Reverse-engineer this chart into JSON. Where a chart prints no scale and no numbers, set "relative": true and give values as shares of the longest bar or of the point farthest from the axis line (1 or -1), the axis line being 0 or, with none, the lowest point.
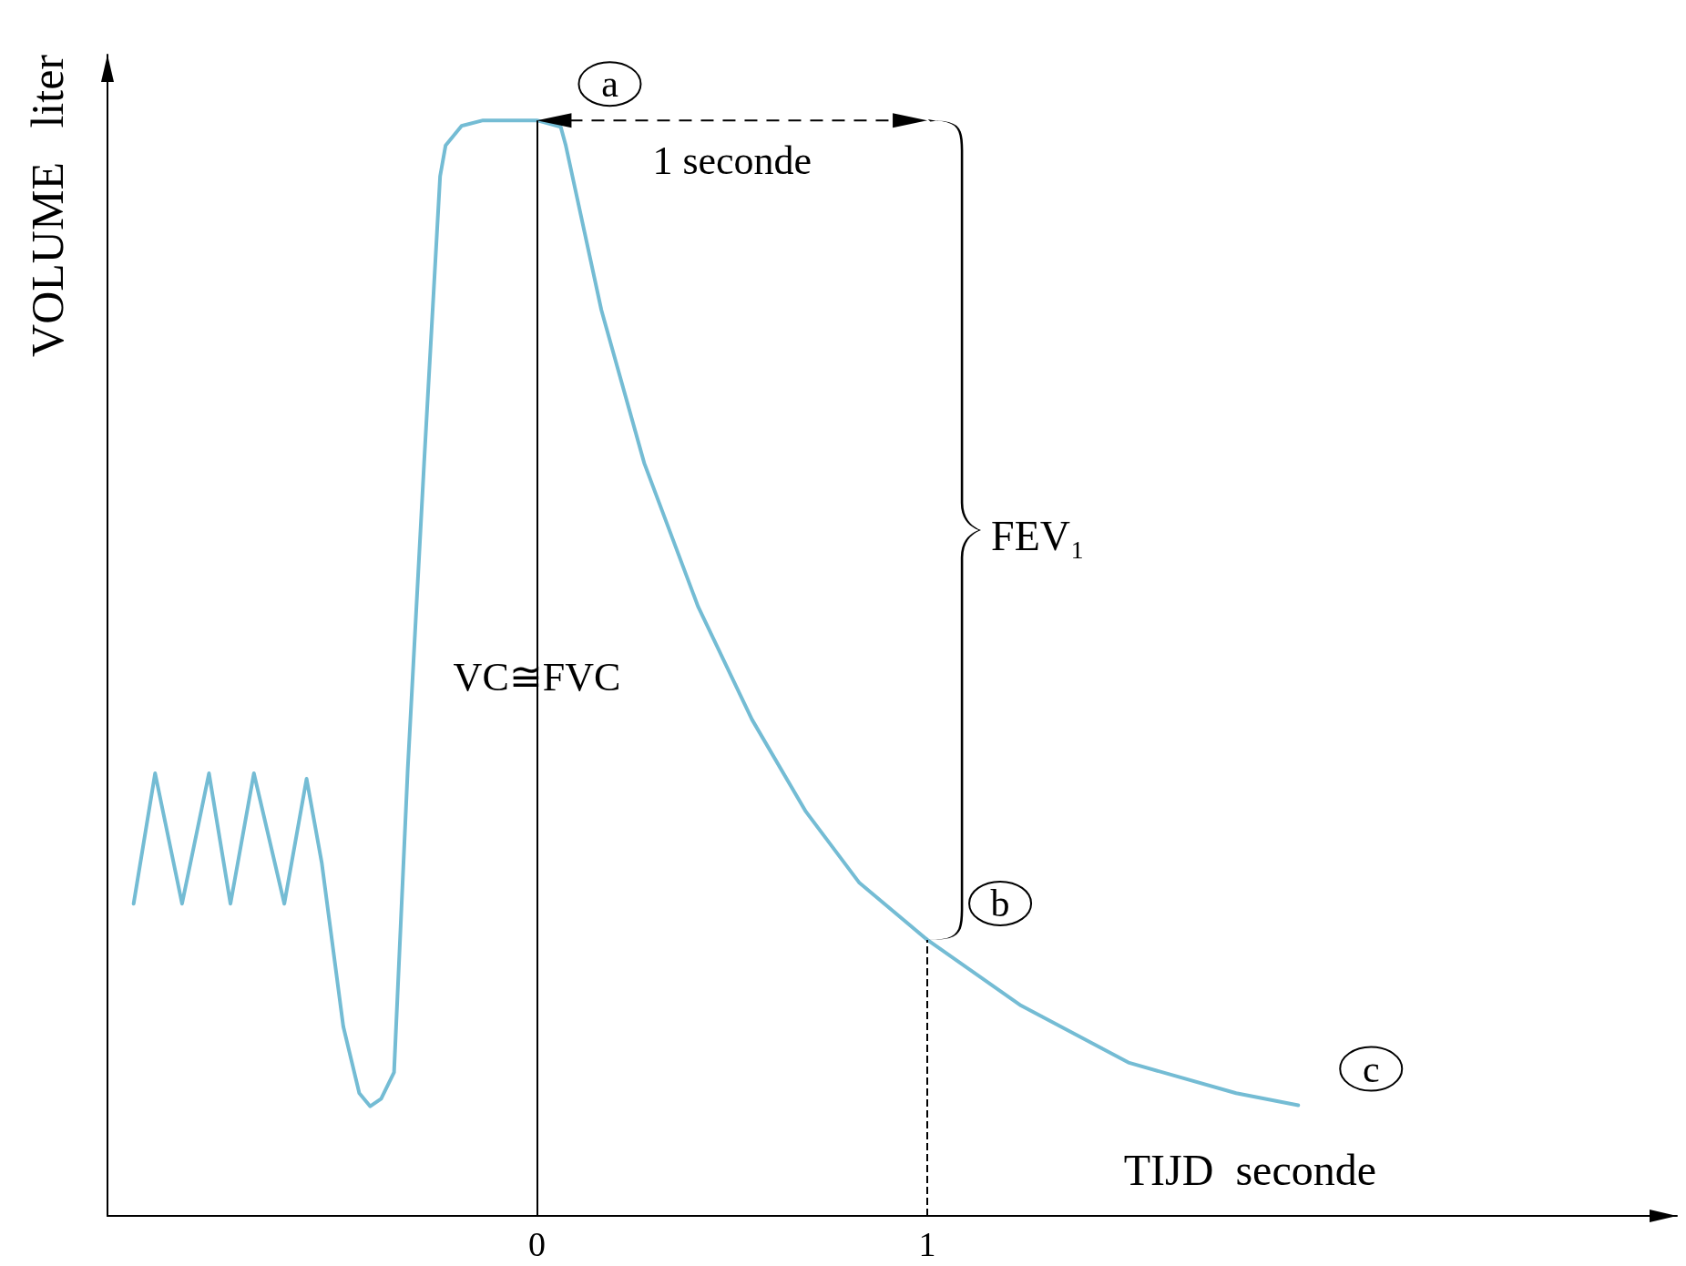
{
  "chart_data": {
    "type": "line",
    "relative": true,
    "xlabel": "TIJD  seconde",
    "ylabel": "VOLUME   liter",
    "x": [
      -1.033,
      -0.978,
      -0.909,
      -0.84,
      -0.785,
      -0.725,
      -0.647,
      -0.59,
      -0.551,
      -0.496,
      -0.455,
      -0.427,
      -0.399,
      -0.366,
      -0.331,
      -0.289,
      -0.248,
      -0.234,
      -0.193,
      -0.138,
      0,
      0.061,
      0.074,
      0.165,
      0.275,
      0.413,
      0.551,
      0.689,
      0.826,
      1,
      1.24,
      1.515,
      1.791,
      1.95
    ],
    "series": [
      {
        "color": "#74bcd4",
        "values": [
          0.285,
          0.404,
          0.285,
          0.404,
          0.285,
          0.404,
          0.285,
          0.399,
          0.322,
          0.173,
          0.112,
          0.1,
          0.107,
          0.131,
          0.407,
          0.687,
          0.949,
          0.977,
          0.995,
          1,
          1,
          0.994,
          0.977,
          0.827,
          0.687,
          0.556,
          0.453,
          0.369,
          0.304,
          0.252,
          0.192,
          0.14,
          0.112,
          0.101
        ]
      }
    ],
    "xlim": [
      -1.1,
      2.92
    ],
    "xticks": [
      0,
      1
    ],
    "ref_lines": [
      {
        "axis": "x",
        "value": 0,
        "label": "VC≅FVC"
      },
      {
        "axis": "x",
        "value": 1,
        "line_style": "dashed"
      }
    ],
    "annotations": [
      {
        "text": "a",
        "x": 0,
        "y": 1
      },
      "1 seconde",
      "FEV₁",
      {
        "text": "b",
        "x": 1,
        "y": 0.252
      },
      {
        "text": "c",
        "x": 1.95,
        "y": 0.101
      }
    ],
    "grid": false,
    "marker": "none",
    "line_style": "solid"
  }
}
